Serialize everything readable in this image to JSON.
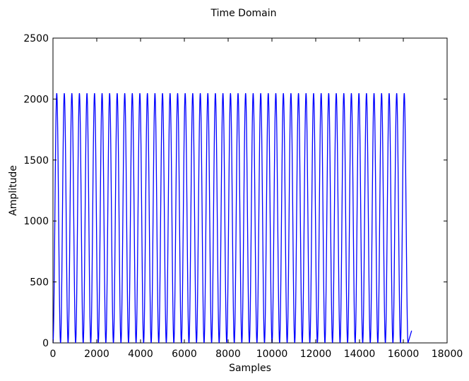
{
  "chart_data": {
    "type": "line",
    "title": "Time Domain",
    "xlabel": "Samples",
    "ylabel": "Amplitude",
    "xlim": [
      0,
      18000
    ],
    "ylim": [
      0,
      2500
    ],
    "xticks": [
      0,
      2000,
      4000,
      6000,
      8000,
      10000,
      12000,
      14000,
      16000,
      18000
    ],
    "yticks": [
      0,
      500,
      1000,
      1500,
      2000,
      2500
    ],
    "grid": false,
    "line_color": "#0000ff",
    "series": [
      {
        "shape": "raised-sine",
        "amplitude_min": 0,
        "amplitude_max": 2048,
        "period_samples": 345,
        "cycles": 47,
        "x_start": 0,
        "x_end": 16380,
        "y_end": 100
      }
    ]
  }
}
